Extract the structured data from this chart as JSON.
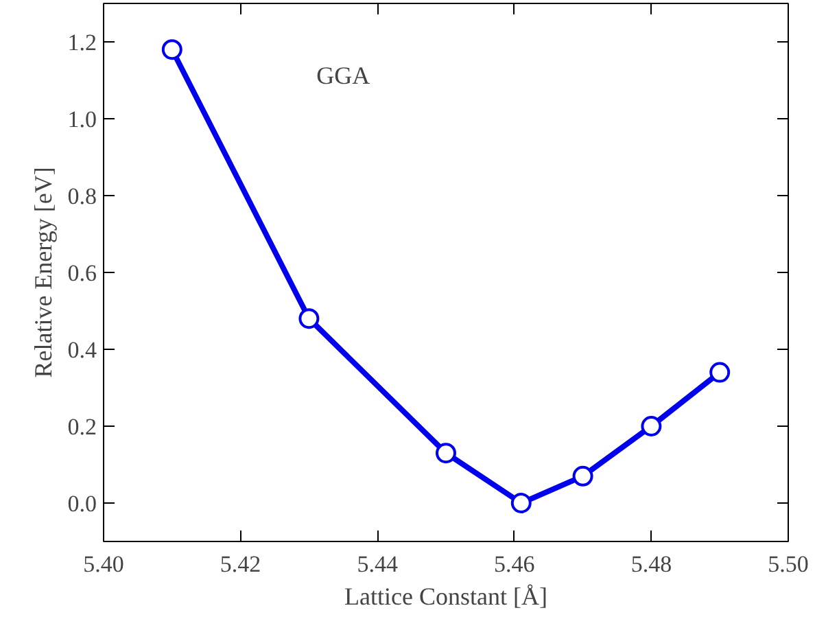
{
  "chart_data": {
    "type": "line",
    "xlabel": "Lattice Constant [Å]",
    "ylabel": "Relative Energy [eV]",
    "annotations": [
      "GGA"
    ],
    "x": [
      5.41,
      5.43,
      5.45,
      5.461,
      5.47,
      5.48,
      5.49
    ],
    "series": [
      {
        "color": "#0000ee",
        "values": [
          1.18,
          0.48,
          0.13,
          0.0,
          0.07,
          0.2,
          0.34
        ]
      }
    ],
    "xlim": [
      5.4,
      5.5
    ],
    "xticks": [
      {
        "value": 5.4,
        "label": "5.40"
      },
      {
        "value": 5.42,
        "label": "5.42"
      },
      {
        "value": 5.44,
        "label": "5.44"
      },
      {
        "value": 5.46,
        "label": "5.46"
      },
      {
        "value": 5.48,
        "label": "5.48"
      },
      {
        "value": 5.5,
        "label": "5.50"
      }
    ],
    "ylim": [
      -0.1,
      1.3
    ],
    "yticks": [
      {
        "value": 0,
        "label": "0.0"
      },
      {
        "value": 0.2,
        "label": "0.2"
      },
      {
        "value": 0.4,
        "label": "0.4"
      },
      {
        "value": 0.6,
        "label": "0.6"
      },
      {
        "value": 0.8,
        "label": "0.8"
      },
      {
        "value": 1.0,
        "label": "1.0"
      },
      {
        "value": 1.2,
        "label": "1.2"
      }
    ],
    "grid": false,
    "marker": "circle",
    "line_style": "solid"
  }
}
